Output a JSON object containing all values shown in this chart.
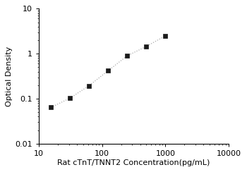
{
  "x_values": [
    15.625,
    31.25,
    62.5,
    125,
    250,
    500,
    1000
  ],
  "y_values": [
    0.064,
    0.103,
    0.195,
    0.42,
    0.9,
    1.45,
    2.5
  ],
  "xlabel": "Rat cTnT/TNNT2 Concentration(pg/mL)",
  "ylabel": "Optical Density",
  "xlim": [
    10,
    10000
  ],
  "ylim": [
    0.01,
    10
  ],
  "line_color": "#aaaaaa",
  "marker_color": "#1a1a1a",
  "marker": "s",
  "marker_size": 4,
  "line_width": 0.9,
  "xlabel_fontsize": 8,
  "ylabel_fontsize": 8,
  "tick_fontsize": 8,
  "background_color": "#ffffff"
}
